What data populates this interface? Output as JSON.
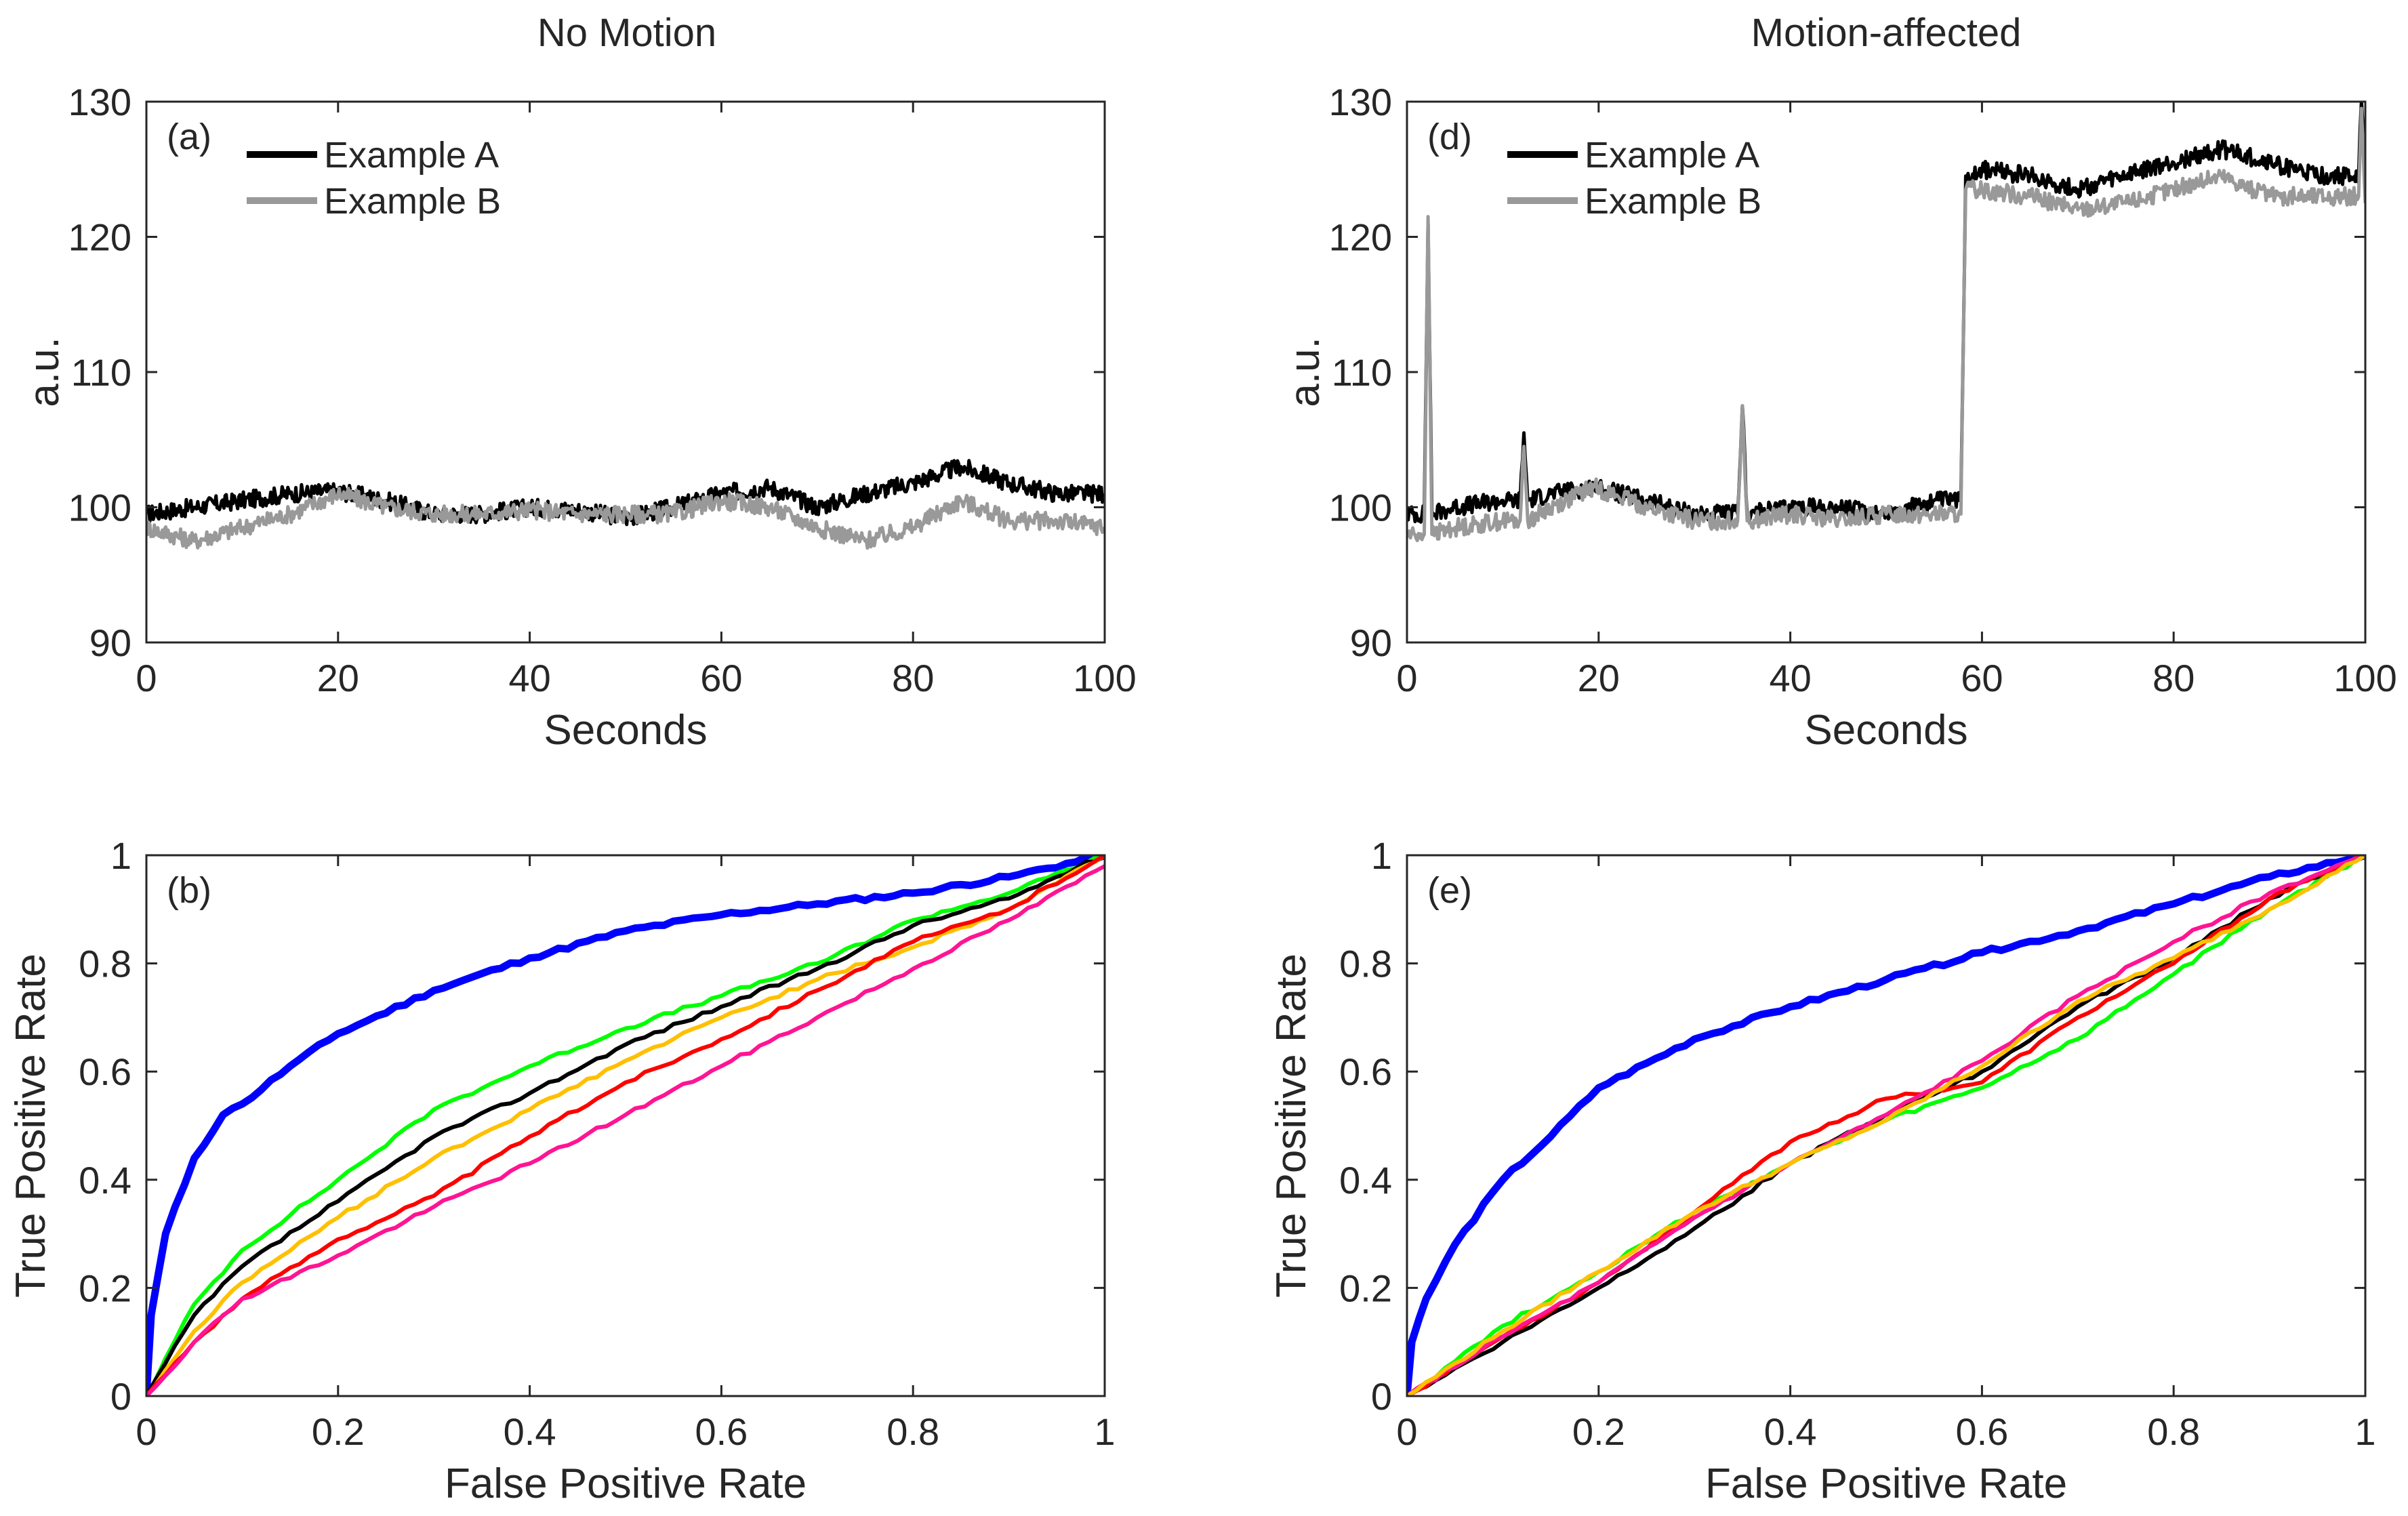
{
  "figure": {
    "column_titles": [
      "No Motion",
      "Motion-affected"
    ]
  },
  "chart_data": [
    {
      "id": "a",
      "type": "line",
      "panel_label": "(a)",
      "title": "No Motion",
      "xlabel": "Seconds",
      "ylabel": "a.u.",
      "xlim": [
        0,
        100
      ],
      "ylim": [
        90,
        130
      ],
      "xticks": [
        0,
        20,
        40,
        60,
        80,
        100
      ],
      "yticks": [
        90,
        100,
        110,
        120,
        130
      ],
      "legend": "top-left",
      "series": [
        {
          "name": "Example A",
          "color": "#000000",
          "x": [
            0,
            5,
            10,
            15,
            20,
            25,
            30,
            35,
            40,
            45,
            50,
            55,
            60,
            65,
            70,
            75,
            80,
            85,
            90,
            95,
            100
          ],
          "y": [
            99.5,
            100.0,
            100.5,
            101.0,
            101.2,
            100.5,
            99.5,
            99.5,
            100.0,
            99.8,
            99.2,
            100.0,
            101.0,
            101.5,
            100.0,
            101.0,
            101.8,
            103.0,
            101.8,
            101.0,
            101.0
          ]
        },
        {
          "name": "Example B",
          "color": "#999999",
          "x": [
            0,
            5,
            10,
            15,
            20,
            25,
            30,
            35,
            40,
            45,
            50,
            55,
            60,
            65,
            70,
            75,
            80,
            85,
            90,
            95,
            100
          ],
          "y": [
            98.5,
            97.5,
            98.5,
            99.5,
            101.0,
            100.0,
            99.5,
            99.5,
            99.8,
            99.5,
            99.5,
            99.5,
            100.5,
            100.0,
            98.5,
            97.5,
            98.5,
            100.5,
            99.0,
            99.0,
            98.5
          ]
        }
      ]
    },
    {
      "id": "d",
      "type": "line",
      "panel_label": "(d)",
      "title": "Motion-affected",
      "xlabel": "Seconds",
      "ylabel": "a.u.",
      "xlim": [
        0,
        100
      ],
      "ylim": [
        90,
        130
      ],
      "xticks": [
        0,
        20,
        40,
        60,
        80,
        100
      ],
      "yticks": [
        90,
        100,
        110,
        120,
        130
      ],
      "legend": "top-left",
      "series": [
        {
          "name": "Example A",
          "color": "#000000",
          "x": [
            0,
            1.8,
            2.2,
            2.6,
            5,
            10,
            11.8,
            12.2,
            12.6,
            15,
            19.5,
            25,
            30,
            34.5,
            35,
            35.5,
            40,
            45,
            50,
            55,
            57.8,
            58.3,
            60,
            65,
            70,
            75,
            80,
            85,
            90,
            95,
            99.3,
            99.6,
            100
          ],
          "y": [
            99.5,
            99.5,
            121.0,
            99.5,
            100.0,
            100.5,
            100.5,
            105.5,
            100.5,
            101.0,
            101.5,
            100.5,
            99.5,
            99.5,
            107.5,
            99.5,
            100.0,
            100.0,
            99.5,
            100.5,
            100.5,
            124.5,
            125.0,
            124.5,
            123.5,
            124.5,
            125.5,
            126.5,
            125.5,
            124.5,
            124.5,
            130.0,
            124.0
          ]
        },
        {
          "name": "Example B",
          "color": "#999999",
          "x": [
            0,
            1.8,
            2.2,
            2.6,
            5,
            10,
            11.8,
            12.2,
            12.6,
            15,
            19.5,
            25,
            30,
            34.5,
            35,
            35.5,
            40,
            45,
            50,
            55,
            57.8,
            58.3,
            60,
            65,
            70,
            75,
            80,
            85,
            90,
            95,
            99.3,
            99.6,
            100
          ],
          "y": [
            98.0,
            98.0,
            121.5,
            98.0,
            98.5,
            99.0,
            99.0,
            104.5,
            99.0,
            100.0,
            101.5,
            100.0,
            99.0,
            99.0,
            107.5,
            99.0,
            99.5,
            99.0,
            99.5,
            99.5,
            99.5,
            123.5,
            123.5,
            123.0,
            122.0,
            122.5,
            123.5,
            124.5,
            123.0,
            123.0,
            123.0,
            129.5,
            122.5
          ]
        }
      ]
    },
    {
      "id": "b",
      "type": "line",
      "panel_label": "(b)",
      "xlabel": "False Positive Rate",
      "ylabel": "True Positive Rate",
      "xlim": [
        0,
        1
      ],
      "ylim": [
        0,
        1
      ],
      "xticks": [
        0,
        0.2,
        0.4,
        0.6,
        0.8,
        1
      ],
      "ytick_labels": [
        "0",
        "0.2",
        "0.4",
        "0.6",
        "0.8",
        "1"
      ],
      "xtick_labels": [
        "0",
        "0.2",
        "0.4",
        "0.6",
        "0.8",
        "1"
      ],
      "yticks": [
        0,
        0.2,
        0.4,
        0.6,
        0.8,
        1
      ],
      "series": [
        {
          "color": "#0000ff",
          "width": "thick",
          "x": [
            0,
            0.005,
            0.02,
            0.05,
            0.08,
            0.1,
            0.15,
            0.2,
            0.3,
            0.4,
            0.5,
            0.6,
            0.7,
            0.8,
            0.9,
            1.0
          ],
          "y": [
            0,
            0.15,
            0.3,
            0.44,
            0.52,
            0.54,
            0.61,
            0.67,
            0.75,
            0.81,
            0.86,
            0.89,
            0.91,
            0.93,
            0.96,
            1.0
          ]
        },
        {
          "color": "#00ff00",
          "x": [
            0,
            0.05,
            0.1,
            0.2,
            0.3,
            0.4,
            0.5,
            0.6,
            0.7,
            0.8,
            0.9,
            1.0
          ],
          "y": [
            0,
            0.17,
            0.27,
            0.4,
            0.53,
            0.61,
            0.68,
            0.74,
            0.8,
            0.88,
            0.93,
            1.0
          ]
        },
        {
          "color": "#000000",
          "x": [
            0,
            0.05,
            0.1,
            0.2,
            0.3,
            0.4,
            0.5,
            0.6,
            0.7,
            0.8,
            0.9,
            1.0
          ],
          "y": [
            0,
            0.15,
            0.24,
            0.36,
            0.48,
            0.56,
            0.65,
            0.72,
            0.79,
            0.87,
            0.92,
            1.0
          ]
        },
        {
          "color": "#ffc000",
          "x": [
            0,
            0.05,
            0.1,
            0.2,
            0.3,
            0.4,
            0.5,
            0.6,
            0.7,
            0.8,
            0.9,
            1.0
          ],
          "y": [
            0,
            0.12,
            0.21,
            0.33,
            0.44,
            0.53,
            0.62,
            0.7,
            0.77,
            0.83,
            0.9,
            1.0
          ]
        },
        {
          "color": "#ff0000",
          "x": [
            0,
            0.05,
            0.1,
            0.2,
            0.3,
            0.4,
            0.5,
            0.6,
            0.7,
            0.8,
            0.9,
            1.0
          ],
          "y": [
            0,
            0.1,
            0.18,
            0.29,
            0.37,
            0.48,
            0.58,
            0.66,
            0.75,
            0.84,
            0.9,
            1.0
          ]
        },
        {
          "color": "#ff1493",
          "x": [
            0,
            0.05,
            0.1,
            0.2,
            0.3,
            0.4,
            0.5,
            0.6,
            0.7,
            0.8,
            0.9,
            1.0
          ],
          "y": [
            0,
            0.1,
            0.18,
            0.26,
            0.35,
            0.43,
            0.52,
            0.61,
            0.7,
            0.79,
            0.88,
            0.98
          ]
        }
      ]
    },
    {
      "id": "e",
      "type": "line",
      "panel_label": "(e)",
      "xlabel": "False Positive Rate",
      "ylabel": "True Positive Rate",
      "xlim": [
        0,
        1
      ],
      "ylim": [
        0,
        1
      ],
      "xticks": [
        0,
        0.2,
        0.4,
        0.6,
        0.8,
        1
      ],
      "ytick_labels": [
        "0",
        "0.2",
        "0.4",
        "0.6",
        "0.8",
        "1"
      ],
      "xtick_labels": [
        "0",
        "0.2",
        "0.4",
        "0.6",
        "0.8",
        "1"
      ],
      "yticks": [
        0,
        0.2,
        0.4,
        0.6,
        0.8,
        1
      ],
      "series": [
        {
          "color": "#0000ff",
          "width": "thick",
          "x": [
            0,
            0.005,
            0.02,
            0.05,
            0.1,
            0.15,
            0.2,
            0.3,
            0.4,
            0.5,
            0.6,
            0.7,
            0.8,
            0.9,
            1.0
          ],
          "y": [
            0,
            0.1,
            0.18,
            0.28,
            0.4,
            0.48,
            0.57,
            0.66,
            0.72,
            0.77,
            0.82,
            0.86,
            0.91,
            0.96,
            1.0
          ]
        },
        {
          "color": "#00ff00",
          "x": [
            0,
            0.1,
            0.2,
            0.3,
            0.4,
            0.5,
            0.6,
            0.7,
            0.8,
            0.9,
            1.0
          ],
          "y": [
            0,
            0.13,
            0.23,
            0.34,
            0.43,
            0.51,
            0.57,
            0.66,
            0.78,
            0.9,
            1.0
          ]
        },
        {
          "color": "#000000",
          "x": [
            0,
            0.1,
            0.2,
            0.3,
            0.4,
            0.5,
            0.6,
            0.7,
            0.8,
            0.9,
            1.0
          ],
          "y": [
            0,
            0.1,
            0.2,
            0.31,
            0.43,
            0.52,
            0.6,
            0.72,
            0.81,
            0.92,
            1.0
          ]
        },
        {
          "color": "#ff0000",
          "x": [
            0,
            0.1,
            0.2,
            0.3,
            0.4,
            0.5,
            0.6,
            0.7,
            0.8,
            0.9,
            1.0
          ],
          "y": [
            0,
            0.11,
            0.21,
            0.34,
            0.47,
            0.55,
            0.58,
            0.7,
            0.8,
            0.92,
            1.0
          ]
        },
        {
          "color": "#ff1493",
          "x": [
            0,
            0.1,
            0.2,
            0.3,
            0.4,
            0.5,
            0.6,
            0.7,
            0.8,
            0.9,
            1.0
          ],
          "y": [
            0,
            0.11,
            0.21,
            0.33,
            0.43,
            0.52,
            0.62,
            0.74,
            0.84,
            0.93,
            1.0
          ]
        },
        {
          "color": "#ffc000",
          "x": [
            0,
            0.1,
            0.2,
            0.3,
            0.4,
            0.5,
            0.6,
            0.7,
            0.8,
            0.9,
            1.0
          ],
          "y": [
            0,
            0.12,
            0.23,
            0.34,
            0.43,
            0.51,
            0.61,
            0.73,
            0.81,
            0.9,
            1.0
          ]
        }
      ]
    }
  ]
}
